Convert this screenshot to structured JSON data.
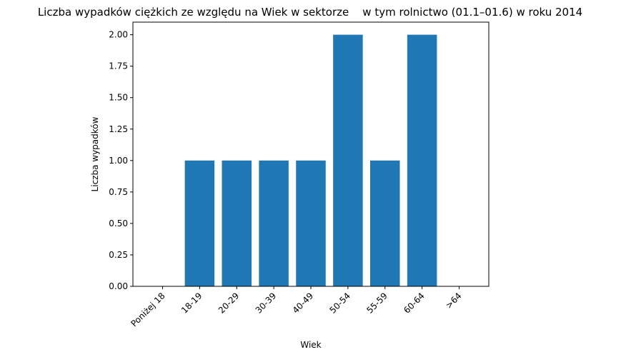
{
  "chart_data": {
    "type": "bar",
    "title": "Liczba wypadków ciężkich ze względu na Wiek w sektorze    w tym rolnictwo (01.1–01.6) w roku 2014",
    "xlabel": "Wiek",
    "ylabel": "Liczba wypadków",
    "categories": [
      "Poniżej 18",
      "18-19",
      "20-29",
      "30-39",
      "40-49",
      "50-54",
      "55-59",
      "60-64",
      ">64"
    ],
    "values": [
      0,
      1,
      1,
      1,
      1,
      2,
      1,
      2,
      0
    ],
    "ylim": [
      0,
      2.1
    ],
    "yticks": [
      "0.00",
      "0.25",
      "0.50",
      "0.75",
      "1.00",
      "1.25",
      "1.50",
      "1.75",
      "2.00"
    ],
    "bar_color": "#1f77b4",
    "grid": false,
    "legend": "none"
  }
}
